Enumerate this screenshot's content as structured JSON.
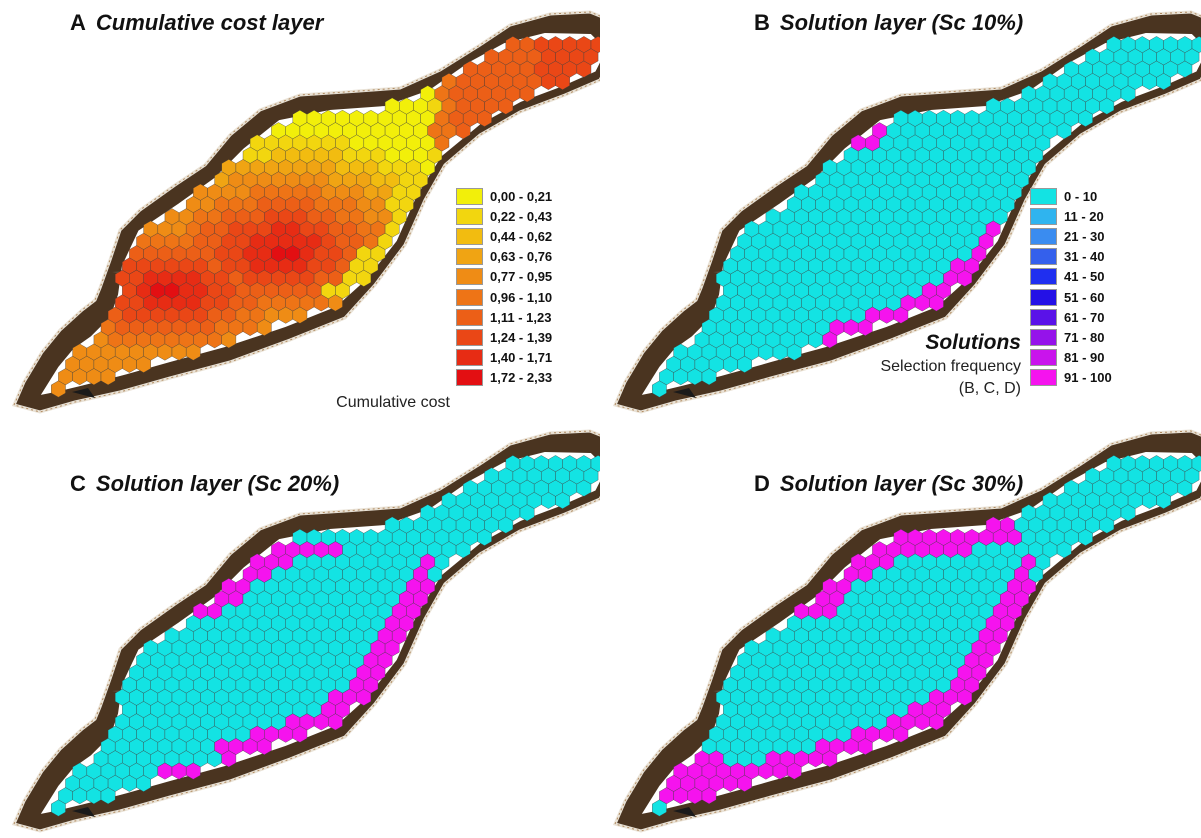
{
  "panels": [
    {
      "letter": "A",
      "title": "Cumulative cost layer",
      "type": "cost"
    },
    {
      "letter": "B",
      "title": "Solution layer (Sc 10%)",
      "type": "solution"
    },
    {
      "letter": "C",
      "title": "Solution layer (Sc 20%)",
      "type": "solution"
    },
    {
      "letter": "D",
      "title": "Solution layer (Sc 30%)",
      "type": "solution"
    }
  ],
  "cost_legend": {
    "caption": "Cumulative cost",
    "classes": [
      {
        "label": "0,00 - 0,21",
        "color": "#f2ef0a"
      },
      {
        "label": "0,22 - 0,43",
        "color": "#f2d60f"
      },
      {
        "label": "0,44 - 0,62",
        "color": "#f2bc10"
      },
      {
        "label": "0,63 - 0,76",
        "color": "#f0a413"
      },
      {
        "label": "0,77 - 0,95",
        "color": "#ef8c15"
      },
      {
        "label": "0,96 - 1,10",
        "color": "#ee7416"
      },
      {
        "label": "1,11 - 1,23",
        "color": "#ec5f17"
      },
      {
        "label": "1,24 - 1,39",
        "color": "#ea4716"
      },
      {
        "label": "1,40 - 1,71",
        "color": "#e72c14"
      },
      {
        "label": "1,72 - 2,33",
        "color": "#e30f12"
      }
    ]
  },
  "solution_legend": {
    "title": "Solutions",
    "caption_line1": "Selection frequency",
    "caption_line2": "(B, C, D)",
    "classes": [
      {
        "label": "0 - 10",
        "color": "#13e3e3"
      },
      {
        "label": "11 - 20",
        "color": "#2fb4ef"
      },
      {
        "label": "21 - 30",
        "color": "#3a8cf0"
      },
      {
        "label": "31 - 40",
        "color": "#3460ec"
      },
      {
        "label": "41 - 50",
        "color": "#1f2ff0"
      },
      {
        "label": "51 - 60",
        "color": "#2411e6"
      },
      {
        "label": "61 - 70",
        "color": "#5a12e8"
      },
      {
        "label": "71 - 80",
        "color": "#9513ea"
      },
      {
        "label": "81 - 90",
        "color": "#c914ec"
      },
      {
        "label": "91 - 100",
        "color": "#f513ee"
      }
    ]
  },
  "colors": {
    "reef": "#4a3420",
    "reef_edge": "#e9e2d6",
    "hex_stroke": "#3a3a3a"
  }
}
